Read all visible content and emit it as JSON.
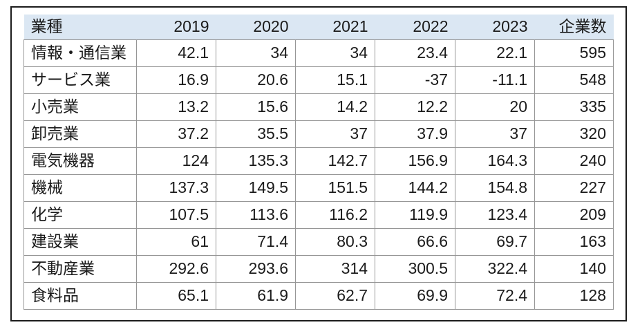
{
  "chart_data": {
    "type": "table",
    "title": "",
    "columns": [
      "業種",
      "2019",
      "2020",
      "2021",
      "2022",
      "2023",
      "企業数"
    ],
    "rows": [
      [
        "情報・通信業",
        42.1,
        34,
        34,
        23.4,
        22.1,
        595
      ],
      [
        "サービス業",
        16.9,
        20.6,
        15.1,
        -37,
        -11.1,
        548
      ],
      [
        "小売業",
        13.2,
        15.6,
        14.2,
        12.2,
        20,
        335
      ],
      [
        "卸売業",
        37.2,
        35.5,
        37,
        37.9,
        37,
        320
      ],
      [
        "電気機器",
        124,
        135.3,
        142.7,
        156.9,
        164.3,
        240
      ],
      [
        "機械",
        137.3,
        149.5,
        151.5,
        144.2,
        154.8,
        227
      ],
      [
        "化学",
        107.5,
        113.6,
        116.2,
        119.9,
        123.4,
        209
      ],
      [
        "建設業",
        61,
        71.4,
        80.3,
        66.6,
        69.7,
        163
      ],
      [
        "不動産業",
        292.6,
        293.6,
        314,
        300.5,
        322.4,
        140
      ],
      [
        "食料品",
        65.1,
        61.9,
        62.7,
        69.9,
        72.4,
        128
      ]
    ],
    "layout": {
      "header_row": true,
      "grid": "full-grid-on-body, borderless-header",
      "first_column_align": "left",
      "numeric_align": "right"
    }
  },
  "colors": {
    "header_bg": "#dbe7f3",
    "grid_border": "#969696",
    "outer_frame": "#1b1b1b",
    "text": "#1b1b1b"
  }
}
